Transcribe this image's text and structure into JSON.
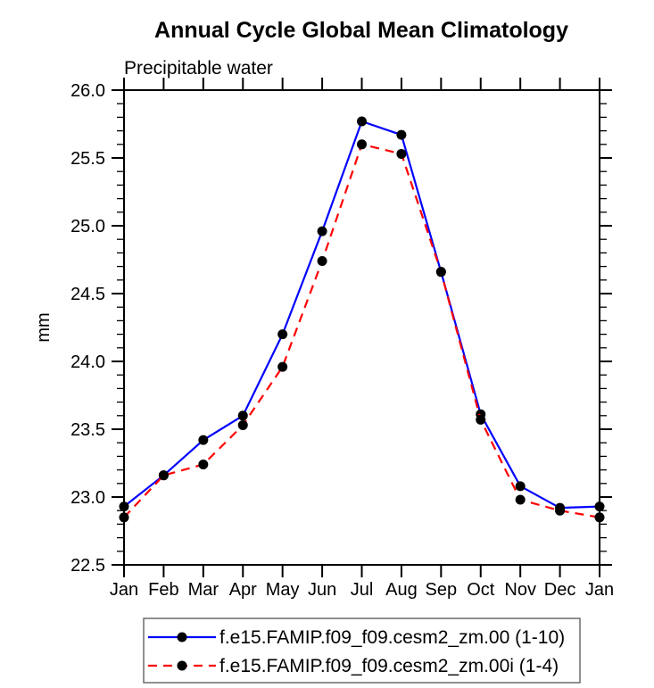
{
  "chart_data": {
    "type": "line",
    "title": "Annual Cycle Global Mean Climatology",
    "subtitle": "Precipitable water",
    "ylabel": "mm",
    "xlabel": "",
    "categories": [
      "Jan",
      "Feb",
      "Mar",
      "Apr",
      "May",
      "Jun",
      "Jul",
      "Aug",
      "Sep",
      "Oct",
      "Nov",
      "Dec",
      "Jan"
    ],
    "ylim": [
      22.5,
      26.0
    ],
    "ytick_major": [
      22.5,
      23.0,
      23.5,
      24.0,
      24.5,
      25.0,
      25.5,
      26.0
    ],
    "ytick_labels": [
      "22.5",
      "23.0",
      "23.5",
      "24.0",
      "24.5",
      "25.0",
      "25.5",
      "26.0"
    ],
    "ytick_minor_step": 0.1,
    "grid": false,
    "legend_position": "bottom",
    "axis_color": "#000000",
    "background_color": "#ffffff",
    "series": [
      {
        "name": "f.e15.FAMIP.f09_f09.cesm2_zm.00 (1-10)",
        "color": "#0000ff",
        "line_style": "solid",
        "marker": "circle",
        "marker_color": "#000000",
        "values": [
          22.93,
          23.16,
          23.42,
          23.6,
          24.2,
          24.96,
          25.77,
          25.67,
          24.66,
          23.61,
          23.08,
          22.92,
          22.93
        ]
      },
      {
        "name": "f.e15.FAMIP.f09_f09.cesm2_zm.00i (1-4)",
        "color": "#ff0000",
        "line_style": "dashed",
        "marker": "circle",
        "marker_color": "#000000",
        "values": [
          22.85,
          23.16,
          23.24,
          23.53,
          23.96,
          24.74,
          25.6,
          25.53,
          24.66,
          23.57,
          22.98,
          22.9,
          22.85
        ]
      }
    ]
  }
}
